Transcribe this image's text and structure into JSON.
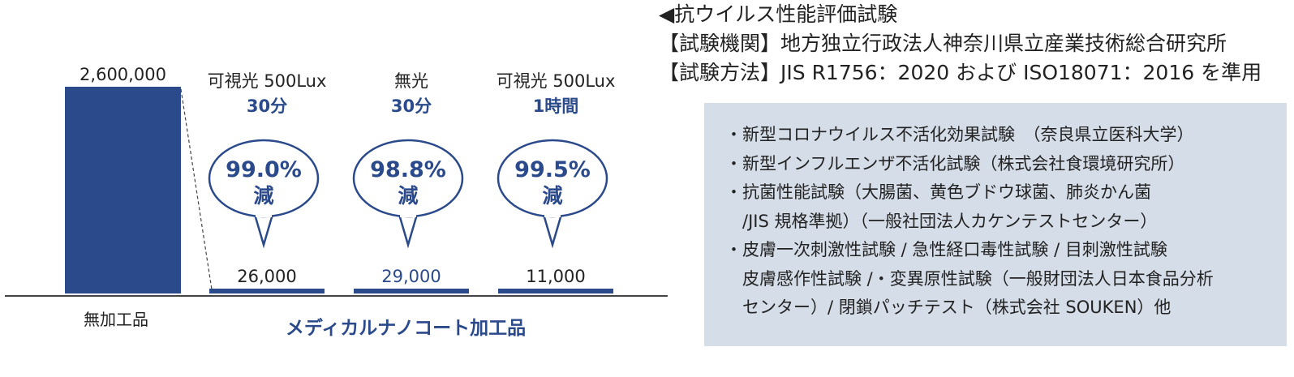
{
  "chart_data": {
    "type": "bar",
    "categories": [
      "無加工品",
      "可視光 500Lux 30分",
      "無光 30分",
      "可視光 500Lux 1時間"
    ],
    "values": [
      2600000,
      26000,
      29000,
      11000
    ],
    "value_labels": [
      "2,600,000",
      "26,000",
      "29,000",
      "11,000"
    ],
    "ylim": [
      0,
      2600000
    ],
    "bar_color": "#2b4a8b",
    "baseline_label": "無加工品",
    "group_label": "メディカルナノコート加工品",
    "conditions": [
      {
        "line1": "可視光 500Lux",
        "line2": "30分"
      },
      {
        "line1": "無光",
        "line2": "30分"
      },
      {
        "line1": "可視光 500Lux",
        "line2": "1時間"
      }
    ],
    "reductions": [
      {
        "percent": "99.0%",
        "word": "減"
      },
      {
        "percent": "98.8%",
        "word": "減"
      },
      {
        "percent": "99.5%",
        "word": "減"
      }
    ]
  },
  "info": {
    "title": "◀抗ウイルス性能評価試験",
    "org": "【試験機関】地方独立行政法人神奈川県立産業技術総合研究所",
    "method": "【試験方法】JIS R1756：2020 および ISO18071：2016 を準用",
    "items": [
      "・新型コロナウイルス不活化効果試験　（奈良県立医科大学）",
      "・新型インフルエンザ不活化試験（株式会社食環境研究所）",
      "・抗菌性能試験（大腸菌、黄色ブドウ球菌、肺炎かん菌",
      "　/JIS 規格準拠）（一般社団法人カケンテストセンター）",
      "・皮膚一次刺激性試験 / 急性経口毒性試験 / 目刺激性試験",
      "　皮膚感作性試験 /・変異原性試験（一般財団法人日本食品分析",
      "　センター）/ 閉鎖パッチテスト（株式会社 SOUKEN）他"
    ]
  },
  "colors": {
    "accent": "#2b4a8b",
    "box_bg": "#d5dde8"
  }
}
